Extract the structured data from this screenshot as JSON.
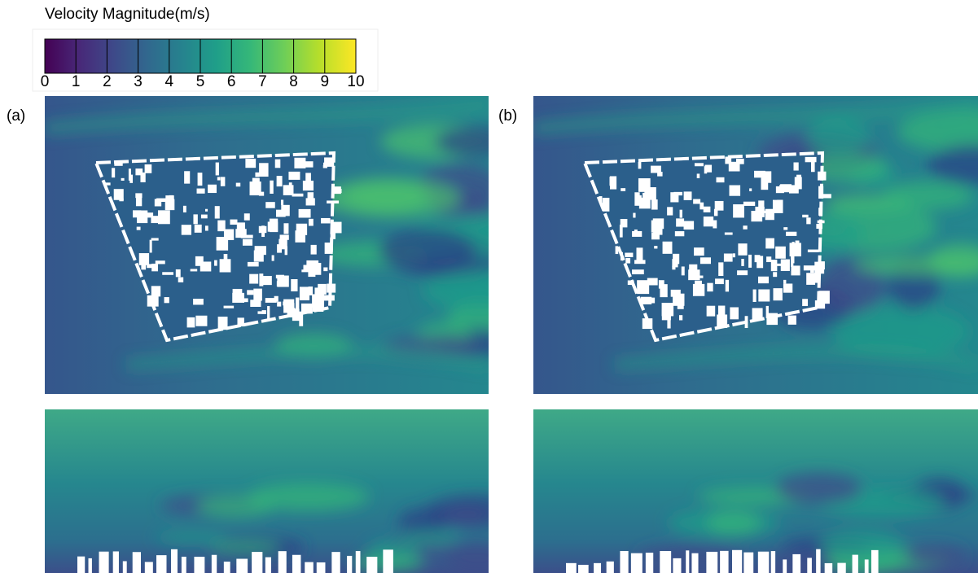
{
  "colorbar": {
    "title": "Velocity Magnitude(m/s)",
    "lim": [
      0,
      10
    ],
    "ticks": [
      0,
      1,
      2,
      3,
      4,
      5,
      6,
      7,
      8,
      9,
      10
    ]
  },
  "panels": [
    {
      "label": "(a)"
    },
    {
      "label": "(b)"
    }
  ]
}
